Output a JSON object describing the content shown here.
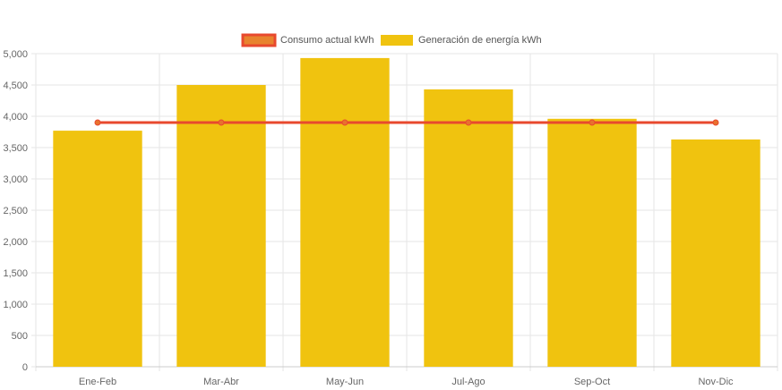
{
  "chart_data": {
    "type": "bar",
    "categories": [
      "Ene-Feb",
      "Mar-Abr",
      "May-Jun",
      "Jul-Ago",
      "Sep-Oct",
      "Nov-Dic"
    ],
    "series": [
      {
        "name": "Consumo actual kWh",
        "type": "line",
        "values": [
          3900,
          3900,
          3900,
          3900,
          3900,
          3900
        ],
        "color": "#e8492e",
        "point_color": "#e8722e"
      },
      {
        "name": "Generación de energía kWh",
        "type": "bar",
        "values": [
          3770,
          4500,
          4930,
          4430,
          3960,
          3630
        ],
        "color": "#f0c30f"
      }
    ],
    "legend_swatch_colors": {
      "line_fill": "#e8832e",
      "line_border": "#e8492e"
    },
    "y_ticks": [
      "0",
      "500",
      "1,000",
      "1,500",
      "2,000",
      "2,500",
      "3,000",
      "3,500",
      "4,000",
      "4,500",
      "5,000"
    ],
    "ylim": [
      0,
      5000
    ],
    "grid": true,
    "legend_position": "top",
    "title": "",
    "xlabel": "",
    "ylabel": ""
  }
}
